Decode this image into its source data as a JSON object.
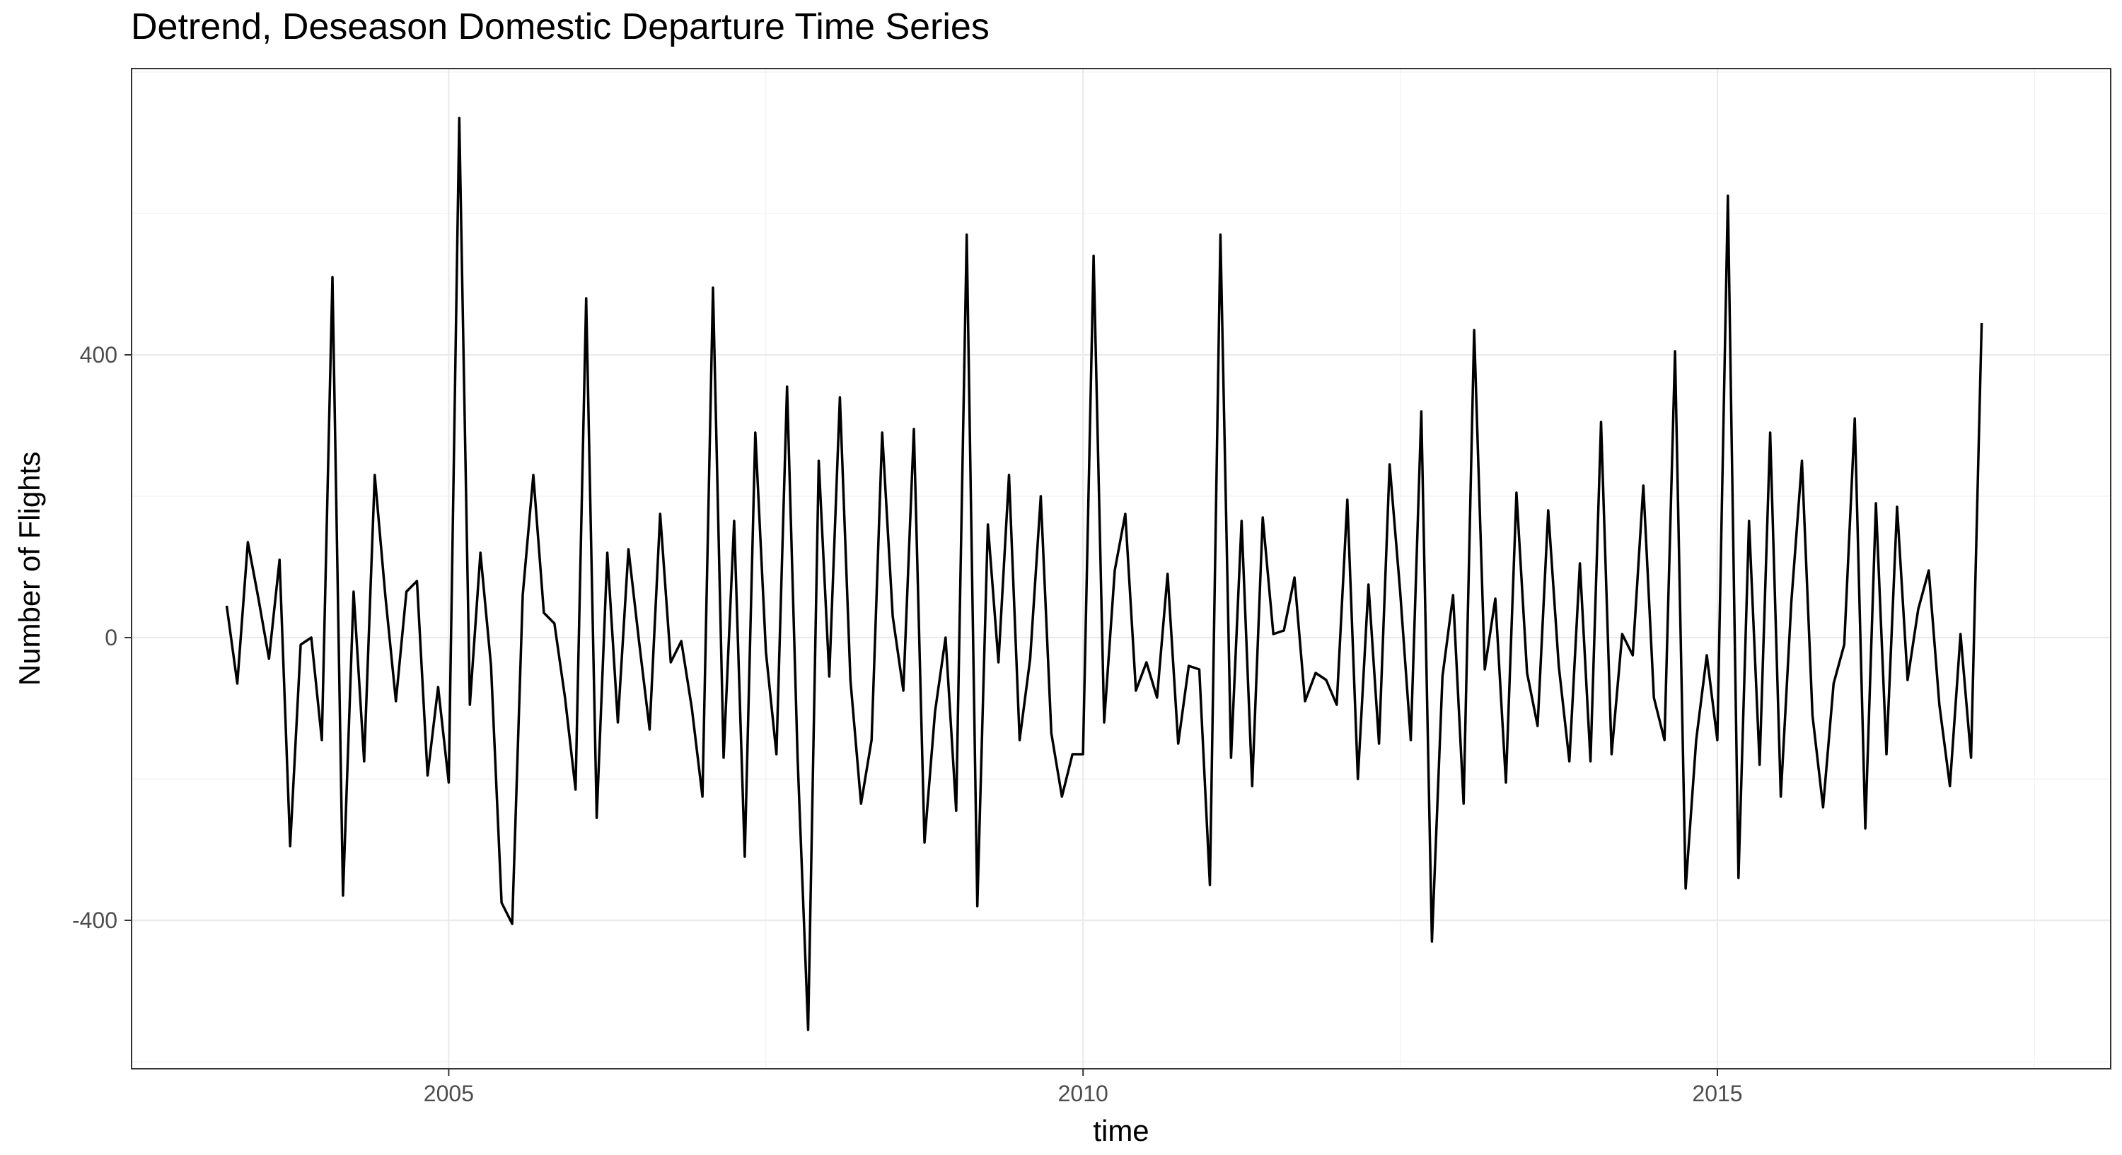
{
  "chart_data": {
    "type": "line",
    "title": "Detrend, Deseason  Domestic Departure Time Series",
    "xlabel": "time",
    "ylabel": "Number of Flights",
    "xlim": [
      2002.5,
      2018.1
    ],
    "ylim": [
      -610,
      805
    ],
    "x_ticks": [
      2005,
      2010,
      2015
    ],
    "y_ticks": [
      -400,
      0,
      400
    ],
    "grid": true,
    "legend": "none",
    "line_color": "#000000",
    "start": 2003.25,
    "step": 0.08333,
    "values": [
      45,
      -65,
      135,
      55,
      -30,
      110,
      -295,
      -10,
      0,
      -145,
      510,
      -365,
      65,
      -175,
      230,
      60,
      -90,
      65,
      80,
      -195,
      -70,
      -205,
      735,
      -95,
      120,
      -40,
      -375,
      -405,
      60,
      230,
      35,
      20,
      -85,
      -215,
      480,
      -255,
      120,
      -120,
      125,
      -5,
      -130,
      175,
      -35,
      -5,
      -100,
      -225,
      495,
      -170,
      165,
      -310,
      290,
      -20,
      -165,
      355,
      -170,
      -555,
      250,
      -55,
      340,
      -60,
      -235,
      -145,
      290,
      30,
      -75,
      295,
      -290,
      -105,
      0,
      -245,
      570,
      -380,
      160,
      -35,
      230,
      -145,
      -30,
      200,
      -135,
      -225,
      -165,
      -165,
      540,
      -120,
      95,
      175,
      -75,
      -35,
      -85,
      90,
      -150,
      -40,
      -45,
      -350,
      570,
      -170,
      165,
      -210,
      170,
      5,
      10,
      85,
      -90,
      -50,
      -60,
      -95,
      195,
      -200,
      75,
      -150,
      245,
      65,
      -145,
      320,
      -430,
      -55,
      60,
      -235,
      435,
      -45,
      55,
      -205,
      205,
      -50,
      -125,
      180,
      -40,
      -175,
      105,
      -175,
      305,
      -165,
      5,
      -25,
      215,
      -85,
      -145,
      405,
      -355,
      -145,
      -25,
      -145,
      625,
      -340,
      165,
      -180,
      290,
      -225,
      50,
      250,
      -110,
      -240,
      -65,
      -10,
      310,
      -270,
      190,
      -165,
      185,
      -60,
      40,
      95,
      -95,
      -210,
      5,
      -170,
      445
    ]
  }
}
